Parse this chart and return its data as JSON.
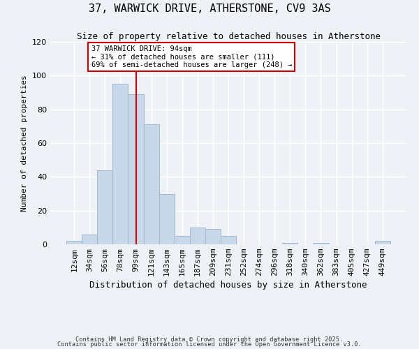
{
  "title": "37, WARWICK DRIVE, ATHERSTONE, CV9 3AS",
  "subtitle": "Size of property relative to detached houses in Atherstone",
  "xlabel": "Distribution of detached houses by size in Atherstone",
  "ylabel": "Number of detached properties",
  "bin_labels": [
    "12sqm",
    "34sqm",
    "56sqm",
    "78sqm",
    "99sqm",
    "121sqm",
    "143sqm",
    "165sqm",
    "187sqm",
    "209sqm",
    "231sqm",
    "252sqm",
    "274sqm",
    "296sqm",
    "318sqm",
    "340sqm",
    "362sqm",
    "383sqm",
    "405sqm",
    "427sqm",
    "449sqm"
  ],
  "bar_values": [
    2,
    6,
    44,
    95,
    89,
    71,
    30,
    5,
    10,
    9,
    5,
    0,
    0,
    0,
    1,
    0,
    1,
    0,
    0,
    0,
    2
  ],
  "bar_color": "#c8d8ea",
  "bar_edgecolor": "#a0b8cc",
  "vline_x": 4,
  "vline_color": "#cc0000",
  "annotation_text": "37 WARWICK DRIVE: 94sqm\n← 31% of detached houses are smaller (111)\n69% of semi-detached houses are larger (248) →",
  "annotation_box_color": "#ffffff",
  "annotation_box_edgecolor": "#cc0000",
  "ylim": [
    0,
    120
  ],
  "yticks": [
    0,
    20,
    40,
    60,
    80,
    100,
    120
  ],
  "footnote1": "Contains HM Land Registry data © Crown copyright and database right 2025.",
  "footnote2": "Contains public sector information licensed under the Open Government Licence v3.0.",
  "background_color": "#eef2f7",
  "grid_color": "#ffffff",
  "title_fontsize": 11,
  "subtitle_fontsize": 9,
  "xlabel_fontsize": 9,
  "ylabel_fontsize": 8,
  "tick_fontsize": 8,
  "annot_fontsize": 7.5
}
